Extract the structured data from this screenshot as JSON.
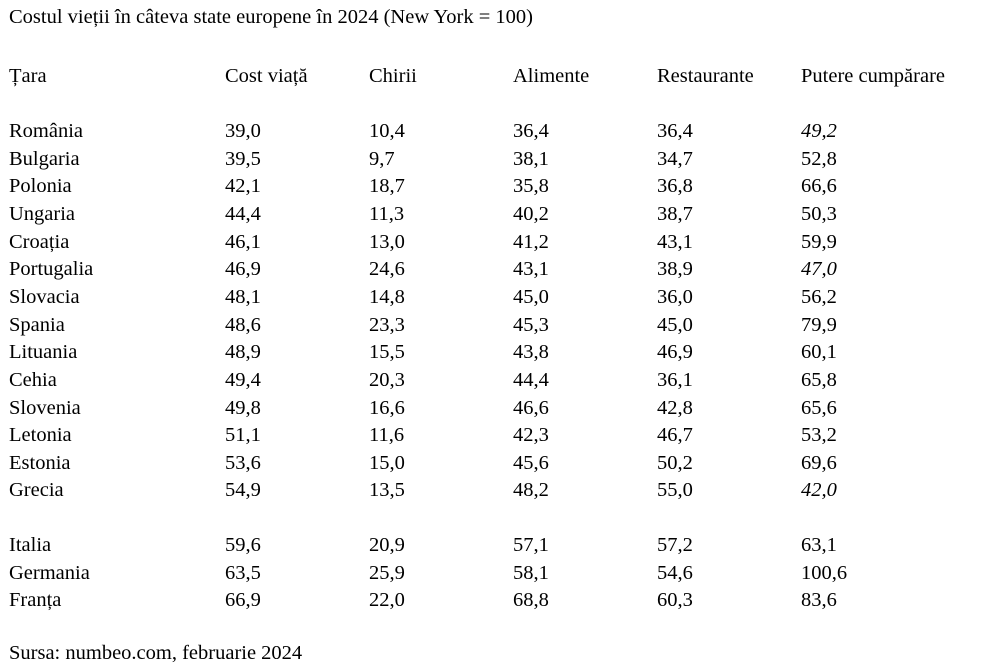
{
  "title": "Costul vieții în câteva state europene în 2024 (New York = 100)",
  "columns": [
    "Țara",
    "Cost viață",
    "Chirii",
    "Alimente",
    "Restaurante",
    "Putere cumpărare"
  ],
  "group1": [
    [
      "România",
      "39,0",
      "10,4",
      "36,4",
      "36,4",
      "49,2"
    ],
    [
      "Bulgaria",
      "39,5",
      "9,7",
      "38,1",
      "34,7",
      "52,8"
    ],
    [
      "Polonia",
      "42,1",
      "18,7",
      "35,8",
      "36,8",
      "66,6"
    ],
    [
      "Ungaria",
      "44,4",
      "11,3",
      "40,2",
      "38,7",
      "50,3"
    ],
    [
      "Croația",
      "46,1",
      "13,0",
      "41,2",
      "43,1",
      "59,9"
    ],
    [
      "Portugalia",
      "46,9",
      "24,6",
      "43,1",
      "38,9",
      "47,0"
    ],
    [
      "Slovacia",
      "48,1",
      "14,8",
      "45,0",
      "36,0",
      "56,2"
    ],
    [
      "Spania",
      "48,6",
      "23,3",
      "45,3",
      "45,0",
      "79,9"
    ],
    [
      "Lituania",
      "48,9",
      "15,5",
      "43,8",
      "46,9",
      "60,1"
    ],
    [
      "Cehia",
      "49,4",
      "20,3",
      "44,4",
      "36,1",
      "65,8"
    ],
    [
      "Slovenia",
      "49,8",
      "16,6",
      "46,6",
      "42,8",
      "65,6"
    ],
    [
      "Letonia",
      "51,1",
      "11,6",
      "42,3",
      "46,7",
      "53,2"
    ],
    [
      "Estonia",
      "53,6",
      "15,0",
      "45,6",
      "50,2",
      "69,6"
    ],
    [
      "Grecia",
      "54,9",
      "13,5",
      "48,2",
      "55,0",
      "42,0"
    ]
  ],
  "group2": [
    [
      "Italia",
      "59,6",
      "20,9",
      "57,1",
      "57,2",
      "63,1"
    ],
    [
      "Germania",
      "63,5",
      "25,9",
      "58,1",
      "54,6",
      "100,6"
    ],
    [
      "Franța",
      "66,9",
      "22,0",
      "68,8",
      "60,3",
      "83,6"
    ]
  ],
  "italic_cells": [
    "România",
    "Portugalia",
    "Grecia"
  ],
  "source": "Sursa: numbeo.com, februarie 2024"
}
